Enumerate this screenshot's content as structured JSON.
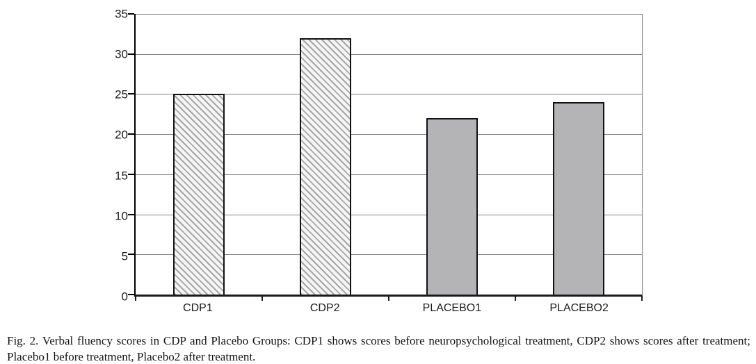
{
  "figure": {
    "caption": "Fig. 2. Verbal fluency scores in CDP and Placebo Groups: CDP1 shows scores before neuropsychological treatment, CDP2 shows scores after treatment; Placebo1 before treatment, Placebo2 after treatment."
  },
  "chart_data": {
    "type": "bar",
    "categories": [
      "CDP1",
      "CDP2",
      "PLACEBO1",
      "PLACEBO2"
    ],
    "values": [
      25,
      32,
      22,
      24
    ],
    "bar_styles": [
      "hatched",
      "hatched",
      "solid",
      "solid"
    ],
    "series_meaning": {
      "hatched": "CDP group",
      "solid": "Placebo group"
    },
    "title": "",
    "xlabel": "",
    "ylabel": "",
    "ylim": [
      0,
      35
    ],
    "yticks": [
      0,
      5,
      10,
      15,
      20,
      25,
      30,
      35
    ],
    "grid": true,
    "legend": "none",
    "colors": {
      "solid_fill": "#b4b4b7",
      "hatch_line": "#a6a6a6",
      "hatch_bg": "#f5f5f5",
      "gridline": "#7f7f7f",
      "axis": "#000000",
      "bar_border": "#111111"
    }
  }
}
